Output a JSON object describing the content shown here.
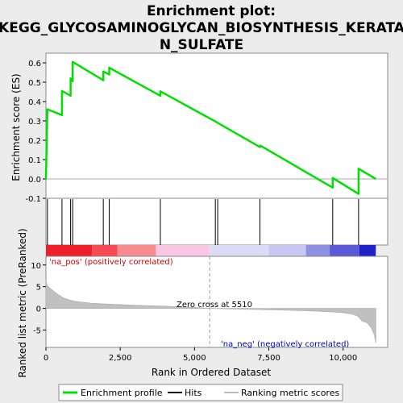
{
  "chart_data": {
    "type": "line",
    "title_lines": [
      "Enrichment plot:",
      "KEGG_GLYCOSAMINOGLYCAN_BIOSYNTHESIS_KERATA",
      "N_SULFATE"
    ],
    "top_panel": {
      "ylabel": "Enrichment score (ES)",
      "ylim": [
        -0.1,
        0.65
      ],
      "yticks": [
        -0.1,
        0.0,
        0.1,
        0.2,
        0.3,
        0.4,
        0.5,
        0.6
      ],
      "ytick_labels": [
        "-0.1",
        "0.0",
        "0.1",
        "0.2",
        "0.3",
        "0.4",
        "0.5",
        "0.6"
      ],
      "series_name": "Enrichment profile",
      "line_color": "#00e000",
      "points": [
        [
          0,
          0.0
        ],
        [
          50,
          0.36
        ],
        [
          540,
          0.33
        ],
        [
          540,
          0.455
        ],
        [
          830,
          0.43
        ],
        [
          830,
          0.52
        ],
        [
          900,
          0.505
        ],
        [
          900,
          0.605
        ],
        [
          1930,
          0.51
        ],
        [
          1930,
          0.555
        ],
        [
          2130,
          0.54
        ],
        [
          2130,
          0.575
        ],
        [
          3850,
          0.43
        ],
        [
          3850,
          0.453
        ],
        [
          5700,
          0.297
        ],
        [
          5780,
          0.29
        ],
        [
          7200,
          0.165
        ],
        [
          7220,
          0.172
        ],
        [
          9650,
          -0.045
        ],
        [
          9650,
          0.005
        ],
        [
          10520,
          -0.077
        ],
        [
          10520,
          0.053
        ],
        [
          11100,
          0.0
        ]
      ]
    },
    "hits": {
      "label": "Hits",
      "positions": [
        50,
        540,
        830,
        900,
        1930,
        2130,
        3850,
        5700,
        5780,
        7200,
        9650,
        10520
      ]
    },
    "bottom_panel": {
      "ylabel": "Ranked list metric (PreRanked)",
      "xlabel": "Rank in Ordered Dataset",
      "ylim": [
        -9,
        12
      ],
      "yticks": [
        -5,
        0,
        5,
        10
      ],
      "ytick_labels": [
        "-5",
        "0",
        "5",
        "10"
      ],
      "xlim": [
        0,
        11500
      ],
      "xticks": [
        0,
        2500,
        5000,
        7500,
        10000
      ],
      "xtick_labels": [
        "0",
        "2,500",
        "5,000",
        "7,500",
        "10,000"
      ],
      "series_name": "Ranking metric scores",
      "metric_curve": [
        [
          0,
          6.5
        ],
        [
          30,
          5.5
        ],
        [
          100,
          4.8
        ],
        [
          250,
          4.0
        ],
        [
          400,
          3.2
        ],
        [
          600,
          2.4
        ],
        [
          800,
          1.9
        ],
        [
          1000,
          1.6
        ],
        [
          1500,
          1.2
        ],
        [
          2000,
          1.0
        ],
        [
          3000,
          0.7
        ],
        [
          4000,
          0.5
        ],
        [
          5000,
          0.2
        ],
        [
          5510,
          0.0
        ],
        [
          6000,
          -0.1
        ],
        [
          7000,
          -0.25
        ],
        [
          8000,
          -0.4
        ],
        [
          9000,
          -0.6
        ],
        [
          9600,
          -0.8
        ],
        [
          10000,
          -1.0
        ],
        [
          10300,
          -1.3
        ],
        [
          10500,
          -1.8
        ],
        [
          10650,
          -3.0
        ],
        [
          10800,
          -3.3
        ],
        [
          10950,
          -4.5
        ],
        [
          11050,
          -6.0
        ],
        [
          11100,
          -8.0
        ]
      ],
      "zero_cross": 5510,
      "zero_cross_label": "Zero cross at 5510",
      "pos_label": "'na_pos' (positively correlated)",
      "neg_label": "'na_neg' (negatively correlated)"
    },
    "heat_bands": [
      {
        "start": 0,
        "end": 1550,
        "color": "#f01e28"
      },
      {
        "start": 1550,
        "end": 2400,
        "color": "#f64a55"
      },
      {
        "start": 2400,
        "end": 3700,
        "color": "#f88a90"
      },
      {
        "start": 3700,
        "end": 5500,
        "color": "#f8c8e2"
      },
      {
        "start": 5500,
        "end": 7500,
        "color": "#dcdcf6"
      },
      {
        "start": 7500,
        "end": 8750,
        "color": "#c8c8f2"
      },
      {
        "start": 8750,
        "end": 9550,
        "color": "#8f8fe4"
      },
      {
        "start": 9550,
        "end": 10550,
        "color": "#5a5ad6"
      },
      {
        "start": 10550,
        "end": 11100,
        "color": "#2020c8"
      }
    ],
    "legend": {
      "placement": "bottom",
      "items": [
        "Enrichment profile",
        "Hits",
        "Ranking metric scores"
      ]
    }
  }
}
